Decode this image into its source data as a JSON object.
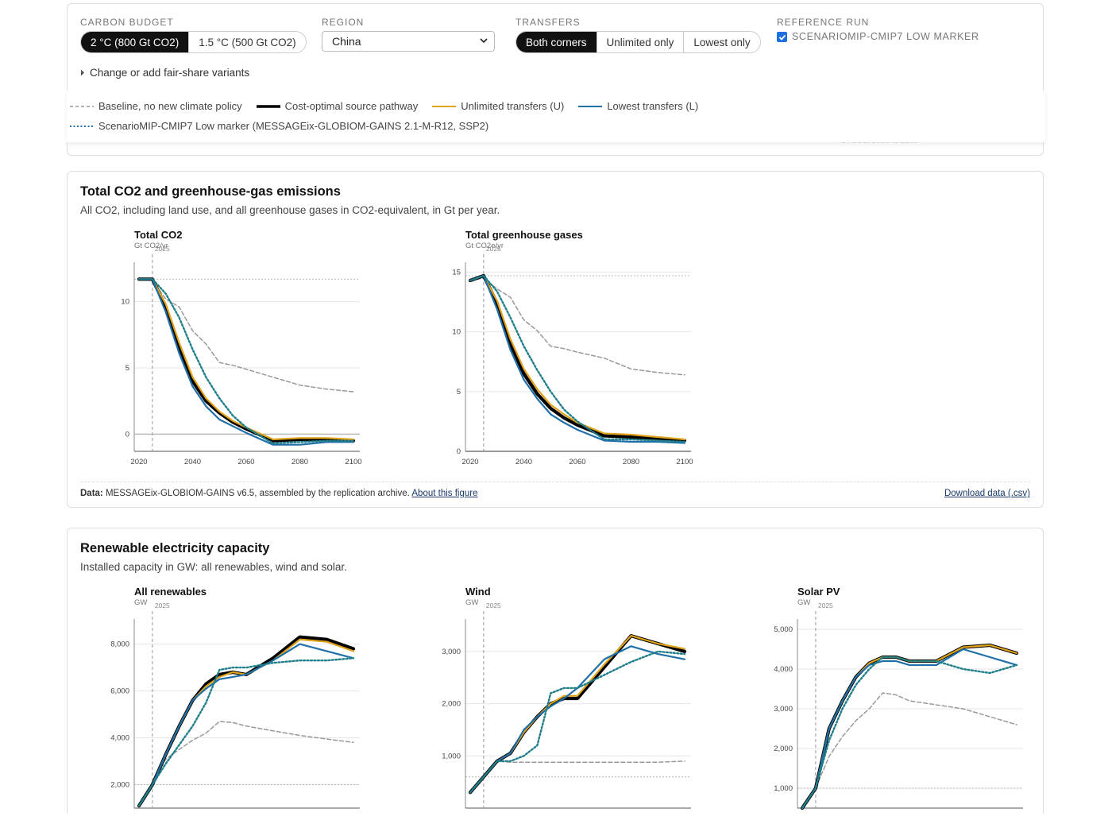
{
  "controls": {
    "carbon_budget": {
      "label": "CARBON BUDGET",
      "options": [
        "2 °C (800 Gt CO2)",
        "1.5 °C (500 Gt CO2)"
      ],
      "selected": 0
    },
    "region": {
      "label": "REGION",
      "value": "China"
    },
    "transfers": {
      "label": "TRANSFERS",
      "options": [
        "Both corners",
        "Unlimited only",
        "Lowest only"
      ],
      "selected": 0
    },
    "reference_run": {
      "label": "REFERENCE RUN",
      "checkbox_label": "SCENARIOMIP-CMIP7 LOW MARKER",
      "checked": true
    },
    "variants_link": "Change or add fair-share variants",
    "faded_note": "Gt CO2, 2020 to 2100"
  },
  "legend": {
    "baseline": "Baseline, no new climate policy",
    "cost_optimal": "Cost-optimal source pathway",
    "unlimited": "Unlimited transfers (U)",
    "lowest": "Lowest transfers (L)",
    "reference": "ScenarioMIP-CMIP7 Low marker (MESSAGEix-GLOBIOM-GAINS 2.1-M-R12, SSP2)"
  },
  "colors": {
    "baseline": "#999999",
    "cost_optimal": "#000000",
    "unlimited": "#e0a21b",
    "lowest": "#1f6fa8",
    "reference": "#1f7f8a"
  },
  "section_emissions": {
    "title": "Total CO2 and greenhouse-gas emissions",
    "subtitle": "All CO2, including land use, and all greenhouse gases in CO2-equivalent, in Gt per year.",
    "footer_label": "Data:",
    "footer_text": "MESSAGEix-GLOBIOM-GAINS v6.5, assembled by the replication archive.",
    "footer_link": "About this figure",
    "download": "Download data (.csv)"
  },
  "section_renewables": {
    "title": "Renewable electricity capacity",
    "subtitle": "Installed capacity in GW: all renewables, wind and solar."
  },
  "chart_data": [
    {
      "id": "co2",
      "type": "line",
      "title": "Total CO2",
      "ylabel": "Gt CO2/yr",
      "marker": "2025",
      "x": [
        2020,
        2025,
        2030,
        2035,
        2040,
        2045,
        2050,
        2055,
        2060,
        2070,
        2080,
        2090,
        2100
      ],
      "xticks": [
        2020,
        2040,
        2060,
        2080,
        2100
      ],
      "yticks": [
        0,
        5,
        10
      ],
      "ylim": [
        -1.3,
        12.5
      ],
      "hline": 11.7,
      "series": {
        "baseline": [
          11.7,
          11.6,
          10.2,
          9.6,
          7.8,
          6.8,
          5.4,
          5.2,
          4.9,
          4.3,
          3.7,
          3.4,
          3.2
        ],
        "cost_optimal": [
          11.7,
          11.7,
          9.6,
          6.6,
          4.0,
          2.5,
          1.6,
          0.9,
          0.4,
          -0.5,
          -0.4,
          -0.4,
          -0.5
        ],
        "unlimited": [
          11.7,
          11.7,
          9.8,
          6.9,
          4.3,
          2.7,
          1.7,
          1.0,
          0.5,
          -0.4,
          -0.3,
          -0.3,
          -0.4
        ],
        "lowest": [
          11.7,
          11.7,
          9.2,
          6.1,
          3.6,
          2.1,
          1.1,
          0.6,
          0.1,
          -0.8,
          -0.8,
          -0.6,
          -0.6
        ],
        "reference": [
          11.7,
          11.7,
          10.6,
          8.8,
          6.4,
          4.3,
          2.7,
          1.4,
          0.5,
          -0.7,
          -0.6,
          -0.5,
          -0.5
        ]
      }
    },
    {
      "id": "ghg",
      "type": "line",
      "title": "Total greenhouse gases",
      "ylabel": "Gt CO2e/yr",
      "marker": "2025",
      "x": [
        2020,
        2025,
        2030,
        2035,
        2040,
        2045,
        2050,
        2055,
        2060,
        2070,
        2080,
        2090,
        2100
      ],
      "xticks": [
        2020,
        2040,
        2060,
        2080,
        2100
      ],
      "yticks": [
        0,
        5,
        10,
        15
      ],
      "ylim": [
        0,
        15.3
      ],
      "hline": 14.7,
      "series": {
        "baseline": [
          14.3,
          14.5,
          13.6,
          12.9,
          11.0,
          10.1,
          8.8,
          8.6,
          8.3,
          7.8,
          6.9,
          6.6,
          6.4
        ],
        "cost_optimal": [
          14.3,
          14.7,
          12.4,
          9.0,
          6.5,
          4.8,
          3.6,
          2.8,
          2.2,
          1.3,
          1.2,
          1.1,
          0.9
        ],
        "unlimited": [
          14.3,
          14.7,
          12.6,
          9.4,
          6.9,
          5.2,
          3.9,
          3.1,
          2.4,
          1.5,
          1.4,
          1.2,
          1.0
        ],
        "lowest": [
          14.3,
          14.7,
          11.9,
          8.5,
          6.0,
          4.4,
          3.1,
          2.4,
          1.8,
          0.9,
          0.8,
          0.8,
          0.7
        ],
        "reference": [
          14.3,
          14.7,
          13.4,
          11.2,
          8.8,
          6.8,
          5.0,
          3.5,
          2.5,
          1.0,
          1.0,
          0.9,
          0.8
        ]
      }
    },
    {
      "id": "renew",
      "type": "line",
      "title": "All renewables",
      "ylabel": "GW",
      "marker": "2025",
      "x": [
        2020,
        2025,
        2030,
        2035,
        2040,
        2045,
        2050,
        2055,
        2060,
        2070,
        2080,
        2090,
        2100
      ],
      "xticks": [],
      "yticks": [
        2000,
        4000,
        6000,
        8000
      ],
      "ylim": [
        1000,
        8800
      ],
      "hline": 2000,
      "series": {
        "baseline": [
          1100,
          2000,
          3100,
          3500,
          3900,
          4200,
          4700,
          4650,
          4500,
          4300,
          4100,
          3950,
          3800
        ],
        "cost_optimal": [
          1100,
          2000,
          3300,
          4500,
          5600,
          6300,
          6700,
          6800,
          6700,
          7400,
          8300,
          8200,
          7800
        ],
        "unlimited": [
          1100,
          2000,
          3300,
          4500,
          5600,
          6200,
          6600,
          6800,
          6700,
          7300,
          8200,
          8100,
          7700
        ],
        "lowest": [
          1100,
          2000,
          3300,
          4500,
          5600,
          6100,
          6500,
          6600,
          6700,
          7300,
          8000,
          7700,
          7400
        ],
        "reference": [
          1100,
          2000,
          2900,
          3700,
          4500,
          5500,
          6900,
          7000,
          7000,
          7200,
          7300,
          7300,
          7400
        ]
      }
    },
    {
      "id": "wind",
      "type": "line",
      "title": "Wind",
      "ylabel": "GW",
      "marker": "2025",
      "x": [
        2020,
        2025,
        2030,
        2035,
        2040,
        2045,
        2050,
        2055,
        2060,
        2070,
        2080,
        2090,
        2100
      ],
      "xticks": [],
      "yticks": [
        1000,
        2000,
        3000
      ],
      "ylim": [
        0,
        3500
      ],
      "hline": 600,
      "series": {
        "baseline": [
          300,
          600,
          900,
          880,
          880,
          880,
          880,
          880,
          880,
          880,
          880,
          880,
          900
        ],
        "cost_optimal": [
          300,
          600,
          900,
          1050,
          1450,
          1750,
          2000,
          2100,
          2100,
          2700,
          3300,
          3150,
          3000
        ],
        "unlimited": [
          300,
          600,
          900,
          1050,
          1450,
          1750,
          2000,
          2150,
          2150,
          2750,
          3300,
          3150,
          3050
        ],
        "lowest": [
          300,
          600,
          900,
          1050,
          1500,
          1750,
          1950,
          2100,
          2300,
          2850,
          3100,
          2950,
          2850
        ],
        "reference": [
          300,
          600,
          900,
          900,
          1000,
          1200,
          2200,
          2300,
          2300,
          2550,
          2800,
          3000,
          2950
        ]
      }
    },
    {
      "id": "solar",
      "type": "line",
      "title": "Solar PV",
      "ylabel": "GW",
      "marker": "2025",
      "x": [
        2020,
        2025,
        2030,
        2035,
        2040,
        2045,
        2050,
        2055,
        2060,
        2070,
        2080,
        2090,
        2100
      ],
      "xticks": [],
      "yticks": [
        1000,
        2000,
        3000,
        4000,
        5000
      ],
      "ylim": [
        500,
        5100
      ],
      "hline": 1000,
      "series": {
        "baseline": [
          500,
          1000,
          1800,
          2300,
          2700,
          3000,
          3400,
          3350,
          3200,
          3100,
          3000,
          2800,
          2600
        ],
        "cost_optimal": [
          500,
          1000,
          2500,
          3200,
          3800,
          4150,
          4300,
          4300,
          4200,
          4200,
          4550,
          4600,
          4400
        ],
        "unlimited": [
          500,
          1000,
          2500,
          3200,
          3800,
          4150,
          4300,
          4300,
          4200,
          4200,
          4550,
          4600,
          4400
        ],
        "lowest": [
          500,
          1000,
          2500,
          3200,
          3800,
          4100,
          4200,
          4200,
          4100,
          4100,
          4500,
          4300,
          4100
        ],
        "reference": [
          500,
          1000,
          2200,
          3000,
          3600,
          4000,
          4300,
          4300,
          4200,
          4200,
          4000,
          3900,
          4100
        ]
      }
    }
  ]
}
